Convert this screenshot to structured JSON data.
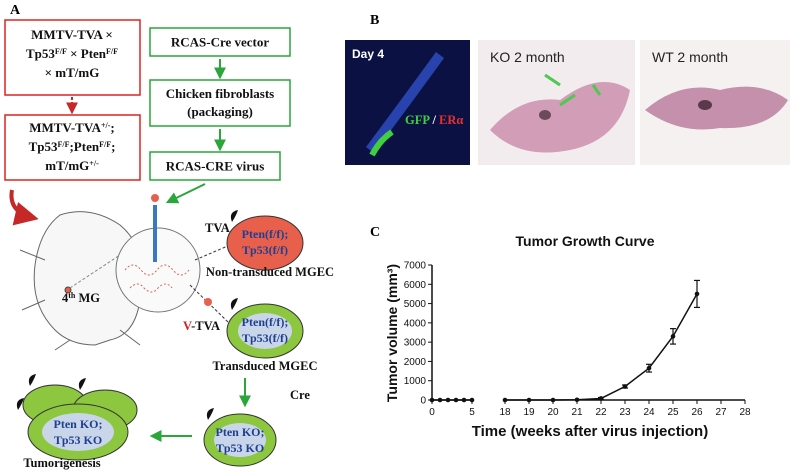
{
  "panel_labels": [
    "A",
    "B",
    "C"
  ],
  "diagram": {
    "boxes": [
      {
        "lines": [
          [
            {
              "text": "MMTV-TVA ×"
            }
          ],
          [
            {
              "text": "Tp53"
            },
            {
              "sup": "F/F"
            },
            {
              "text": " × Pten"
            },
            {
              "sup": "F/F"
            }
          ],
          [
            {
              "text": "× mT/mG"
            }
          ]
        ]
      },
      {
        "lines": [
          [
            {
              "text": "MMTV-TVA"
            },
            {
              "sup": "+/-"
            },
            {
              "text": ";"
            }
          ],
          [
            {
              "text": "Tp53"
            },
            {
              "sup": "F/F"
            },
            {
              "text": ";Pten"
            },
            {
              "sup": "F/F"
            },
            {
              "text": ";"
            }
          ],
          [
            {
              "text": "mT/mG"
            },
            {
              "sup": "+/-"
            }
          ]
        ]
      },
      {
        "lines": [
          [
            {
              "text": "RCAS-Cre vector"
            }
          ]
        ]
      },
      {
        "lines": [
          [
            {
              "text": "Chicken fibroblasts"
            }
          ],
          [
            {
              "text": "(packaging)"
            }
          ]
        ]
      },
      {
        "lines": [
          [
            {
              "text": "RCAS-CRE virus"
            }
          ]
        ]
      }
    ],
    "mouse_label": [
      {
        "text": "4"
      },
      {
        "sup": "th"
      },
      {
        "text": " MG"
      }
    ],
    "cells": [
      {
        "tag": [
          {
            "text": "TVA"
          }
        ],
        "lines": [
          [
            {
              "text": "Pten(f/f);"
            }
          ],
          [
            {
              "text": "Tp53(f/f)"
            }
          ]
        ],
        "caption": "Non-transduced MGEC"
      },
      {
        "tag": [
          {
            "text": "V",
            "color": "#d42020"
          },
          {
            "text": "-TVA"
          }
        ],
        "lines": [
          [
            {
              "text": "Pten(f/f);"
            }
          ],
          [
            {
              "text": "Tp53(f/f)"
            }
          ]
        ],
        "caption": "Transduced MGEC"
      },
      {
        "lines": [
          [
            {
              "text": "Pten KO;"
            }
          ],
          [
            {
              "text": "Tp53 KO"
            }
          ]
        ]
      },
      {
        "lines": [
          [
            {
              "text": "Pten KO;"
            }
          ],
          [
            {
              "text": "Tp53 KO"
            }
          ]
        ],
        "caption": "Tumorigenesis"
      }
    ],
    "step": "Cre"
  },
  "images": [
    {
      "label": "Day 4",
      "legend": [
        {
          "text": "GFP",
          "color": "#3fcf3f"
        },
        {
          "text": " / ",
          "color": "#ffffff"
        },
        {
          "text": "ERα",
          "color": "#e83030"
        }
      ]
    },
    {
      "label": "KO 2 month"
    },
    {
      "label": "WT 2 month"
    }
  ],
  "chart_data": {
    "type": "line",
    "title": "Tumor Growth Curve",
    "x_label": "Time (weeks after virus injection)",
    "y_label": "Tumor volume (mm³)",
    "x": [
      0,
      1,
      2,
      3,
      4,
      5,
      18,
      19,
      20,
      21,
      22,
      23,
      24,
      25,
      26
    ],
    "values": [
      0,
      0,
      0,
      0,
      0,
      0,
      0,
      0,
      0,
      10,
      80,
      700,
      1650,
      3300,
      5500
    ],
    "errors": [
      null,
      null,
      null,
      null,
      null,
      null,
      null,
      null,
      null,
      null,
      50,
      80,
      200,
      400,
      700
    ],
    "color": "#111111",
    "xlim": [
      [
        0,
        5
      ],
      [
        18,
        28
      ]
    ],
    "xticks": [
      0,
      5,
      18,
      19,
      20,
      21,
      22,
      23,
      24,
      25,
      26,
      27,
      28
    ],
    "ylim": [
      0,
      7000
    ],
    "yticks": [
      0,
      1000,
      2000,
      3000,
      4000,
      5000,
      6000,
      7000
    ]
  }
}
